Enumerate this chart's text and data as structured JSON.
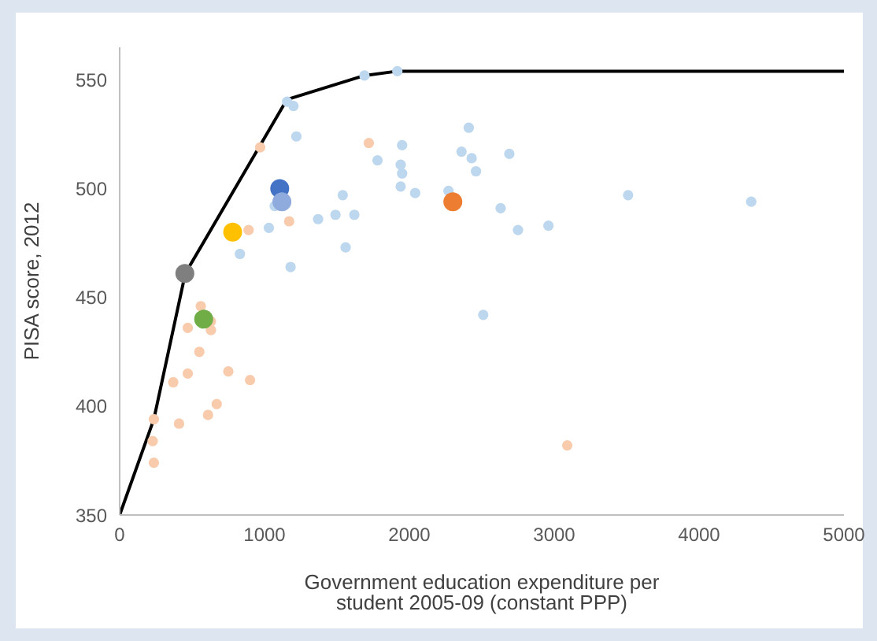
{
  "chart_data": {
    "type": "scatter",
    "xlabel": "Government education expenditure per student 2005-09 (constant PPP)",
    "ylabel": "PISA score, 2012",
    "xlim": [
      0,
      5000
    ],
    "xticks": [
      0,
      1000,
      2000,
      3000,
      4000,
      5000
    ],
    "ylim": [
      350,
      565
    ],
    "yticks": [
      350,
      400,
      450,
      500,
      550
    ],
    "marker": "circle",
    "series": [
      {
        "type": "line",
        "color": "#000000",
        "marker": "none",
        "x": [
          0,
          236,
          453,
          1155,
          1690,
          1917,
          5000
        ],
        "values": [
          350,
          394,
          461,
          541,
          552,
          554,
          554
        ]
      },
      {
        "color": "#f8cbad",
        "x": [
          970,
          890,
          1170,
          560,
          630,
          470,
          630,
          550,
          470,
          370,
          750,
          900,
          670,
          610,
          410,
          236,
          228,
          236,
          1720,
          3090
        ],
        "values": [
          519,
          481,
          485,
          446,
          439,
          436,
          435,
          425,
          415,
          411,
          416,
          412,
          401,
          396,
          392,
          394,
          384,
          374,
          521,
          382
        ]
      },
      {
        "color": "#bdd7ee",
        "x": [
          1156,
          1200,
          1220,
          1540,
          1070,
          1030,
          1370,
          1490,
          1620,
          1560,
          830,
          1180,
          1690,
          1780,
          1917,
          2410,
          1950,
          1940,
          1950,
          2360,
          2430,
          2460,
          2690,
          1940,
          2040,
          2270,
          2630,
          2750,
          2960,
          2510,
          3510,
          4360
        ],
        "values": [
          540,
          538,
          524,
          497,
          492,
          482,
          486,
          488,
          488,
          473,
          470,
          464,
          552,
          513,
          554,
          528,
          520,
          511,
          507,
          517,
          514,
          508,
          516,
          501,
          498,
          499,
          491,
          481,
          483,
          442,
          497,
          494
        ]
      },
      {
        "color": "#4472c4",
        "x": [
          1105
        ],
        "values": [
          500
        ]
      },
      {
        "color": "#8faadc",
        "x": [
          1120
        ],
        "values": [
          494
        ]
      },
      {
        "color": "#ed7d31",
        "x": [
          2300
        ],
        "values": [
          494
        ]
      },
      {
        "color": "#ffc000",
        "x": [
          780
        ],
        "values": [
          480
        ]
      },
      {
        "color": "#7f7f7f",
        "x": [
          450
        ],
        "values": [
          461
        ]
      },
      {
        "color": "#70ad47",
        "x": [
          580
        ],
        "values": [
          440
        ]
      }
    ]
  }
}
